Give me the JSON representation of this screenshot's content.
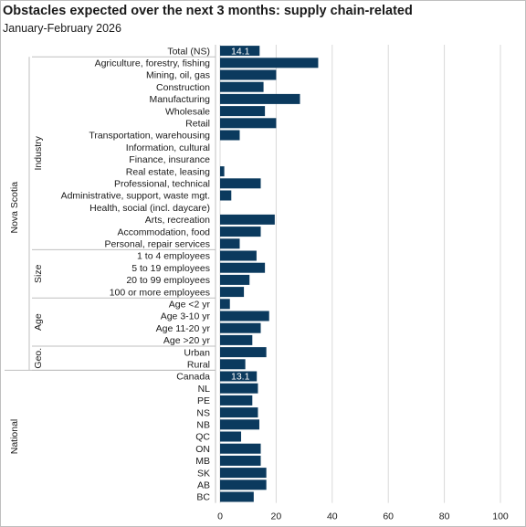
{
  "title": "Obstacles expected over the next 3 months:  supply chain-related",
  "subtitle": "January-February  2026",
  "chart_data": {
    "type": "bar",
    "orientation": "horizontal",
    "bar_color": "#0b3a5e",
    "grid": true,
    "xlim": [
      0,
      100
    ],
    "x_ticks": [
      "0",
      "20",
      "40",
      "60",
      "80",
      "100"
    ],
    "categories": [
      "Total (NS)",
      "Agriculture, forestry, fishing",
      "Mining, oil, gas",
      "Construction",
      "Manufacturing",
      "Wholesale",
      "Retail",
      "Transportation, warehousing",
      "Information, cultural",
      "Finance, insurance",
      "Real estate, leasing",
      "Professional, technical",
      "Administrative, support, waste mgt.",
      "Health, social (incl. daycare)",
      "Arts, recreation",
      "Accommodation, food",
      "Personal, repair services",
      "1 to 4 employees",
      "5 to 19 employees",
      "20 to 99 employees",
      "100 or more employees",
      "Age <2 yr",
      "Age 3-10 yr",
      "Age 11-20 yr",
      "Age >20 yr",
      "Urban",
      "Rural",
      "Canada",
      "NL",
      "PE",
      "NS",
      "NB",
      "QC",
      "ON",
      "MB",
      "SK",
      "AB",
      "BC"
    ],
    "values": [
      14.1,
      35,
      20,
      15.5,
      28.5,
      16,
      20,
      7,
      null,
      null,
      1.5,
      14.5,
      4,
      null,
      19.5,
      14.5,
      7,
      13,
      16,
      10.5,
      8.5,
      3.5,
      17.5,
      14.5,
      11.5,
      16.5,
      9,
      13.1,
      13.5,
      11.5,
      13.5,
      14,
      7.5,
      14.5,
      14.5,
      16.5,
      16.5,
      12
    ],
    "data_labels": [
      {
        "category": "Total (NS)",
        "text": "14.1"
      },
      {
        "category": "Canada",
        "text": "13.1"
      }
    ],
    "groups": [
      {
        "label": "Industry",
        "start": 1,
        "end": 16
      },
      {
        "label": "Size",
        "start": 17,
        "end": 20
      },
      {
        "label": "Age",
        "start": 21,
        "end": 24
      },
      {
        "label": "Geo.",
        "start": 25,
        "end": 26
      }
    ],
    "outer_groups": [
      {
        "label": "Nova Scotia",
        "start": 0,
        "end": 26
      },
      {
        "label": "National",
        "start": 27,
        "end": 37
      }
    ]
  }
}
